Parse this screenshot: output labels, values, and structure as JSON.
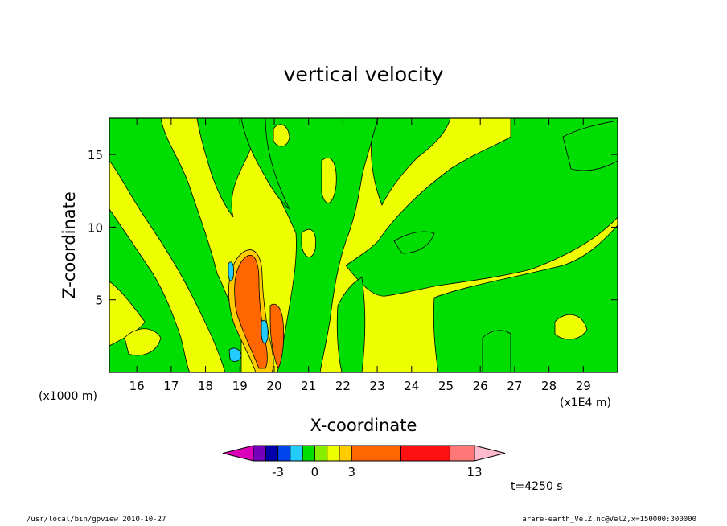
{
  "chart_data": {
    "type": "heatmap",
    "title": "vertical velocity",
    "xlabel": "X-coordinate",
    "ylabel": "Z-coordinate",
    "x_scale_label": "(x1E4 m)",
    "y_scale_label": "(x1000 m)",
    "xlim": [
      15.2,
      30
    ],
    "ylim": [
      0,
      17.5
    ],
    "x_ticks": [
      16,
      17,
      18,
      19,
      20,
      21,
      22,
      23,
      24,
      25,
      26,
      27,
      28,
      29
    ],
    "y_ticks": [
      5,
      10,
      15
    ],
    "colorbar": {
      "levels": [
        -5,
        -4,
        -3,
        -2,
        -1,
        0,
        1,
        2,
        3,
        7,
        11,
        13
      ],
      "labels": [
        "-3",
        "0",
        "3",
        "13"
      ],
      "colors": [
        "#dd00bb",
        "#7700bb",
        "#0000aa",
        "#0044ee",
        "#22ccff",
        "#00dd00",
        "#88ee00",
        "#eeff00",
        "#ffcc00",
        "#ff6600",
        "#ff1111",
        "#ff7777",
        "#ffbbcc"
      ]
    },
    "fill_colors": {
      "negative_weak": "#00dd00",
      "positive_weak": "#eeff00",
      "positive_mid": "#ffcc00",
      "positive_strong": "#ff6600",
      "negative_strong": "#22ccff",
      "negative_core": "#0044ee"
    },
    "time_label": "t=4250 s"
  },
  "footer": {
    "left": "/usr/local/bin/gpview  2010-10-27",
    "right": "arare-earth_VelZ.nc@VelZ,x=150000:300000"
  }
}
